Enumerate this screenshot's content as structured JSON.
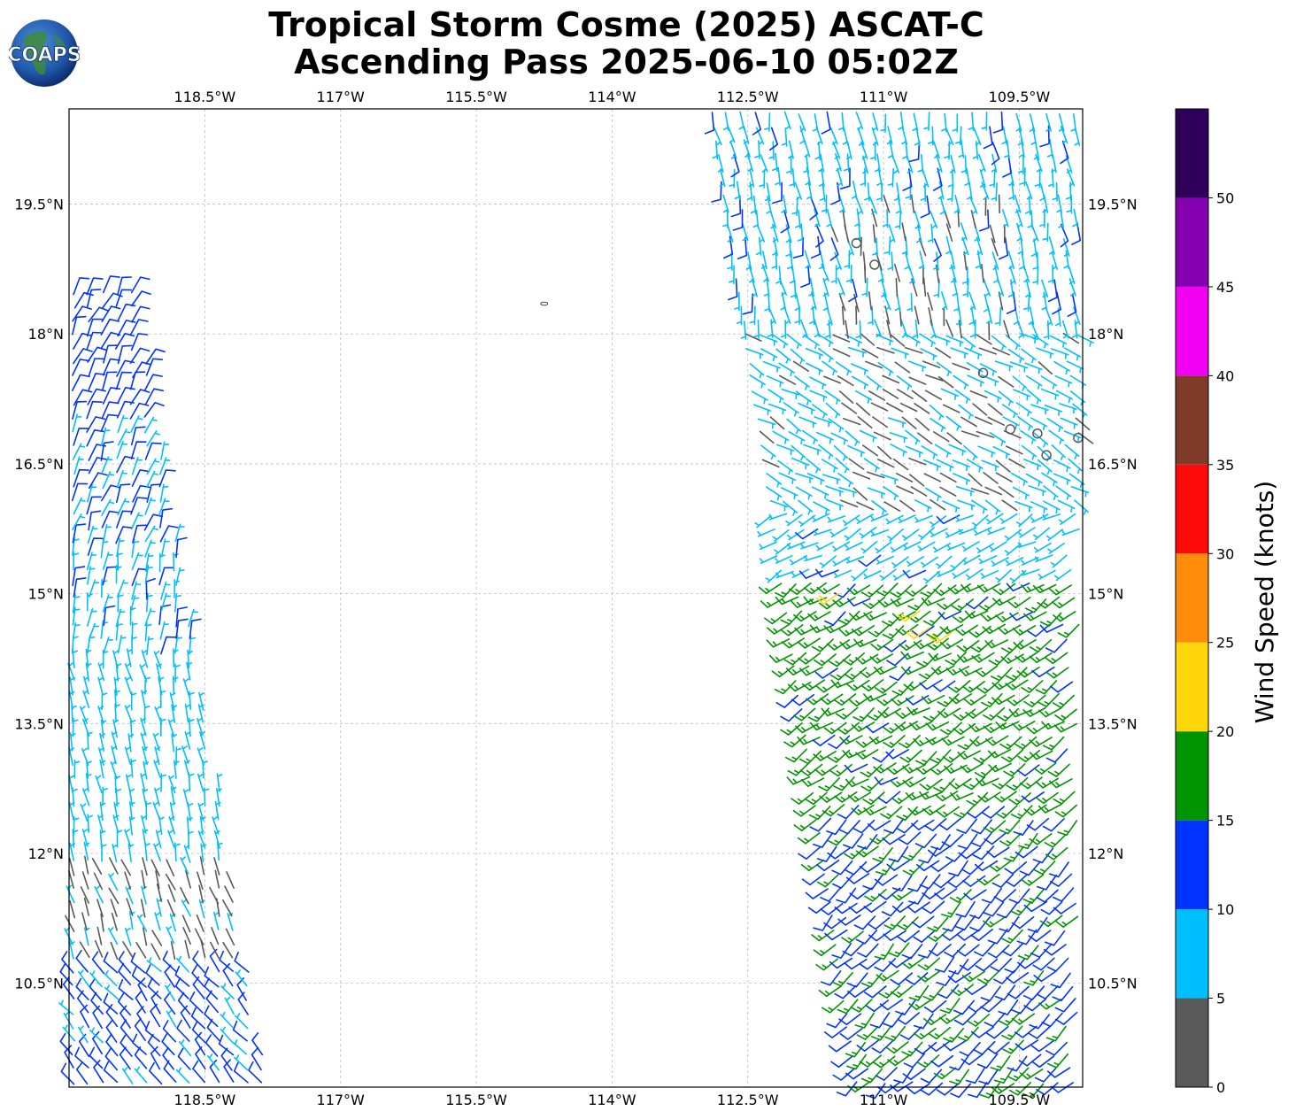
{
  "header": {
    "title_line1": "Tropical Storm Cosme (2025) ASCAT-C",
    "title_line2": "Ascending Pass 2025-06-10 05:02Z",
    "logo_text": "COAPS"
  },
  "map": {
    "lon_range": [
      -120.0,
      -108.8
    ],
    "lat_range": [
      9.3,
      20.6
    ],
    "lon_ticks": [
      {
        "value": -118.5,
        "label": "118.5°W"
      },
      {
        "value": -117.0,
        "label": "117°W"
      },
      {
        "value": -115.5,
        "label": "115.5°W"
      },
      {
        "value": -114.0,
        "label": "114°W"
      },
      {
        "value": -112.5,
        "label": "112.5°W"
      },
      {
        "value": -111.0,
        "label": "111°W"
      },
      {
        "value": -109.5,
        "label": "109.5°W"
      }
    ],
    "lat_ticks": [
      {
        "value": 19.5,
        "label": "19.5°N"
      },
      {
        "value": 18.0,
        "label": "18°N"
      },
      {
        "value": 16.5,
        "label": "16.5°N"
      },
      {
        "value": 15.0,
        "label": "15°N"
      },
      {
        "value": 13.5,
        "label": "13.5°N"
      },
      {
        "value": 12.0,
        "label": "12°N"
      },
      {
        "value": 10.5,
        "label": "10.5°N"
      }
    ],
    "gridlines": true,
    "island": {
      "lon": -114.75,
      "lat": 18.35
    }
  },
  "colorbar": {
    "title": "Wind Speed (knots)",
    "bins": [
      {
        "min": 0,
        "max": 5,
        "color": "#595959"
      },
      {
        "min": 5,
        "max": 10,
        "color": "#00bfff"
      },
      {
        "min": 10,
        "max": 15,
        "color": "#0033ff"
      },
      {
        "min": 15,
        "max": 20,
        "color": "#009400"
      },
      {
        "min": 20,
        "max": 25,
        "color": "#ffd60a"
      },
      {
        "min": 25,
        "max": 30,
        "color": "#ff8c0a"
      },
      {
        "min": 30,
        "max": 35,
        "color": "#ff0a0a"
      },
      {
        "min": 35,
        "max": 40,
        "color": "#803a29"
      },
      {
        "min": 40,
        "max": 45,
        "color": "#f200f2"
      },
      {
        "min": 45,
        "max": 50,
        "color": "#8400b0"
      },
      {
        "min": 50,
        "max": 55,
        "color": "#2e0059"
      }
    ],
    "tick_labels": [
      "0",
      "5",
      "10",
      "15",
      "20",
      "25",
      "30",
      "35",
      "40",
      "45",
      "50"
    ]
  },
  "wind_field": {
    "western_swath": {
      "lat_min": 9.3,
      "lat_max": 18.6,
      "west_edge_lon": -120.0,
      "east_edge_lon_at_min_lat": -117.8,
      "east_edge_lon_at_max_lat": -119.3,
      "speed_zones": [
        {
          "lat_min": 17.0,
          "lat_max": 18.6,
          "speed": 12,
          "dir": 25
        },
        {
          "lat_min": 15.5,
          "lat_max": 17.0,
          "speed": 10,
          "dir": 20
        },
        {
          "lat_min": 14.3,
          "lat_max": 15.5,
          "speed": 9,
          "dir": 10
        },
        {
          "lat_min": 11.8,
          "lat_max": 14.3,
          "speed": 8,
          "dir": 350
        },
        {
          "lat_min": 10.7,
          "lat_max": 11.8,
          "speed": 4,
          "dir": 340
        },
        {
          "lat_min": 9.3,
          "lat_max": 10.7,
          "speed": 11,
          "dir": 320
        }
      ]
    },
    "eastern_swath": {
      "lat_min": 9.3,
      "lat_max": 20.6,
      "east_edge_lon": -108.8,
      "west_edge_lon_at_min_lat": -111.3,
      "west_edge_lon_at_max_lat": -112.9,
      "speed_zones": [
        {
          "lat_min": 18.0,
          "lat_max": 20.6,
          "speed": 8,
          "dir": 170
        },
        {
          "lat_min": 16.0,
          "lat_max": 18.0,
          "speed": 7,
          "dir": 120
        },
        {
          "lat_min": 15.2,
          "lat_max": 16.0,
          "speed": 8,
          "dir": 240
        },
        {
          "lat_min": 12.5,
          "lat_max": 15.2,
          "speed": 17,
          "dir": 235
        },
        {
          "lat_min": 9.3,
          "lat_max": 12.5,
          "speed": 14,
          "dir": 225
        }
      ],
      "calm_points": [
        {
          "lon": -111.3,
          "lat": 19.05
        },
        {
          "lon": -111.1,
          "lat": 18.8
        },
        {
          "lon": -109.9,
          "lat": 17.55
        },
        {
          "lon": -109.6,
          "lat": 16.9
        },
        {
          "lon": -109.3,
          "lat": 16.85
        },
        {
          "lon": -109.2,
          "lat": 16.6
        },
        {
          "lon": -108.85,
          "lat": 16.8
        }
      ],
      "gust_points": [
        {
          "lon": -111.5,
          "lat": 15.0,
          "speed": 22,
          "dir": 235
        },
        {
          "lon": -110.6,
          "lat": 14.8,
          "speed": 22,
          "dir": 235
        },
        {
          "lon": -110.5,
          "lat": 14.6,
          "speed": 22,
          "dir": 235
        },
        {
          "lon": -110.25,
          "lat": 14.55,
          "speed": 22,
          "dir": 235
        }
      ]
    }
  }
}
